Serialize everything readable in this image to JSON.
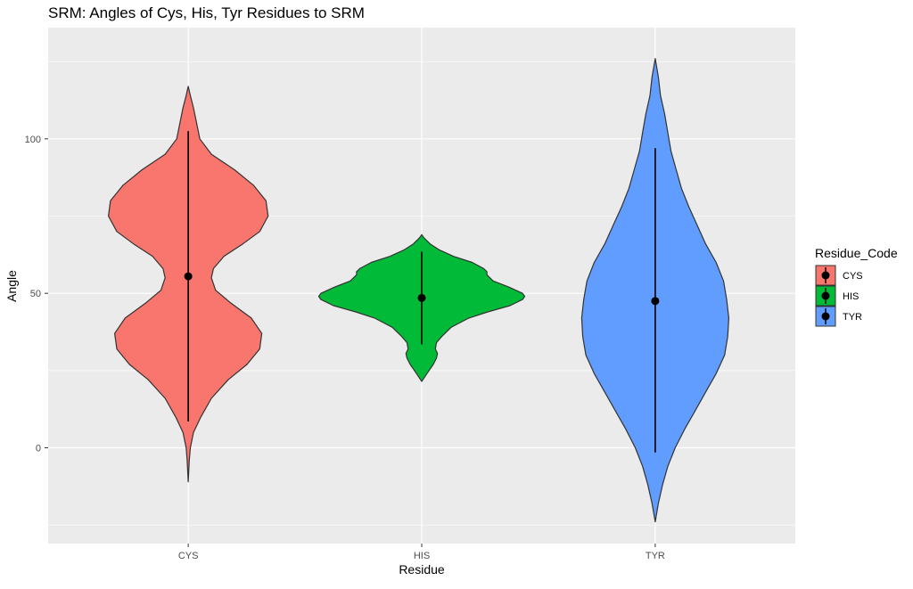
{
  "chart_data": {
    "type": "violin",
    "title": "SRM: Angles of Cys, His, Tyr Residues to SRM",
    "xlabel": "Residue",
    "ylabel": "Angle",
    "categories": [
      "CYS",
      "HIS",
      "TYR"
    ],
    "ylim": [
      -31,
      136
    ],
    "yticks": [
      0,
      50,
      100
    ],
    "grid": true,
    "legend": {
      "title": "Residue_Code",
      "position": "right",
      "entries": [
        "CYS",
        "HIS",
        "TYR"
      ]
    },
    "colors": {
      "CYS": "#F8766D",
      "HIS": "#00BA38",
      "TYR": "#619CFF",
      "panel": "#EBEBEB",
      "grid": "#FFFFFF",
      "outline": "#333333",
      "summary": "#000000"
    },
    "series": [
      {
        "name": "CYS",
        "summary": {
          "mean": 55.5,
          "lower": 8.5,
          "upper": 102.5
        },
        "range": [
          -11,
          117
        ],
        "density": [
          [
            -11,
            0.0
          ],
          [
            -4,
            0.01
          ],
          [
            0,
            0.02
          ],
          [
            5,
            0.05
          ],
          [
            10,
            0.12
          ],
          [
            16,
            0.22
          ],
          [
            22,
            0.38
          ],
          [
            27,
            0.56
          ],
          [
            32,
            0.68
          ],
          [
            37,
            0.7
          ],
          [
            42,
            0.6
          ],
          [
            47,
            0.4
          ],
          [
            51,
            0.26
          ],
          [
            55,
            0.22
          ],
          [
            58,
            0.24
          ],
          [
            62,
            0.34
          ],
          [
            66,
            0.52
          ],
          [
            70,
            0.68
          ],
          [
            75,
            0.76
          ],
          [
            80,
            0.74
          ],
          [
            85,
            0.62
          ],
          [
            90,
            0.44
          ],
          [
            95,
            0.22
          ],
          [
            100,
            0.11
          ],
          [
            105,
            0.08
          ],
          [
            110,
            0.05
          ],
          [
            114,
            0.02
          ],
          [
            117,
            0.0
          ]
        ]
      },
      {
        "name": "HIS",
        "summary": {
          "mean": 48.5,
          "lower": 33.5,
          "upper": 63.5
        },
        "range": [
          21.5,
          69
        ],
        "density": [
          [
            21.5,
            0.0
          ],
          [
            23,
            0.03
          ],
          [
            25,
            0.07
          ],
          [
            27,
            0.11
          ],
          [
            29,
            0.14
          ],
          [
            30.5,
            0.15
          ],
          [
            32,
            0.13
          ],
          [
            34,
            0.14
          ],
          [
            36,
            0.19
          ],
          [
            39,
            0.28
          ],
          [
            42,
            0.45
          ],
          [
            44,
            0.63
          ],
          [
            46,
            0.84
          ],
          [
            48,
            0.96
          ],
          [
            49,
            0.98
          ],
          [
            50,
            0.96
          ],
          [
            52,
            0.83
          ],
          [
            54,
            0.68
          ],
          [
            56,
            0.62
          ],
          [
            57,
            0.62
          ],
          [
            58,
            0.59
          ],
          [
            60,
            0.48
          ],
          [
            62,
            0.3
          ],
          [
            64,
            0.17
          ],
          [
            66,
            0.08
          ],
          [
            68,
            0.02
          ],
          [
            69,
            0.0
          ]
        ]
      },
      {
        "name": "TYR",
        "summary": {
          "mean": 47.5,
          "lower": -1.5,
          "upper": 97
        },
        "range": [
          -24,
          126
        ],
        "density": [
          [
            -24,
            0.0
          ],
          [
            -18,
            0.03
          ],
          [
            -12,
            0.07
          ],
          [
            -6,
            0.12
          ],
          [
            0,
            0.19
          ],
          [
            6,
            0.28
          ],
          [
            12,
            0.38
          ],
          [
            18,
            0.48
          ],
          [
            24,
            0.58
          ],
          [
            30,
            0.66
          ],
          [
            36,
            0.69
          ],
          [
            42,
            0.7
          ],
          [
            48,
            0.68
          ],
          [
            54,
            0.65
          ],
          [
            60,
            0.58
          ],
          [
            66,
            0.48
          ],
          [
            72,
            0.4
          ],
          [
            78,
            0.32
          ],
          [
            84,
            0.25
          ],
          [
            90,
            0.2
          ],
          [
            96,
            0.15
          ],
          [
            102,
            0.12
          ],
          [
            108,
            0.09
          ],
          [
            114,
            0.05
          ],
          [
            120,
            0.03
          ],
          [
            126,
            0.0
          ]
        ]
      }
    ]
  }
}
